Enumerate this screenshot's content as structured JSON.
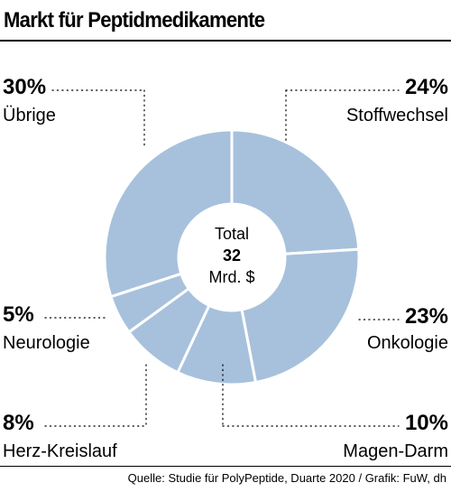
{
  "title": "Markt für Peptidmedikamente",
  "source": "Quelle: Studie für PolyPeptide, Duarte 2020 / Grafik: FuW, dh",
  "chart_data": {
    "type": "pie",
    "variant": "donut",
    "title": "Markt für Peptidmedikamente",
    "center": {
      "label": "Total",
      "value": "32",
      "unit": "Mrd. $"
    },
    "slice_color": "#a7c1dc",
    "slices": [
      {
        "name": "Stoffwechsel",
        "value": 24,
        "label": "24%"
      },
      {
        "name": "Onkologie",
        "value": 23,
        "label": "23%"
      },
      {
        "name": "Magen-Darm",
        "value": 10,
        "label": "10%"
      },
      {
        "name": "Herz-Kreislauf",
        "value": 8,
        "label": "8%"
      },
      {
        "name": "Neurologie",
        "value": 5,
        "label": "5%"
      },
      {
        "name": "Übrige",
        "value": 30,
        "label": "30%"
      }
    ]
  }
}
